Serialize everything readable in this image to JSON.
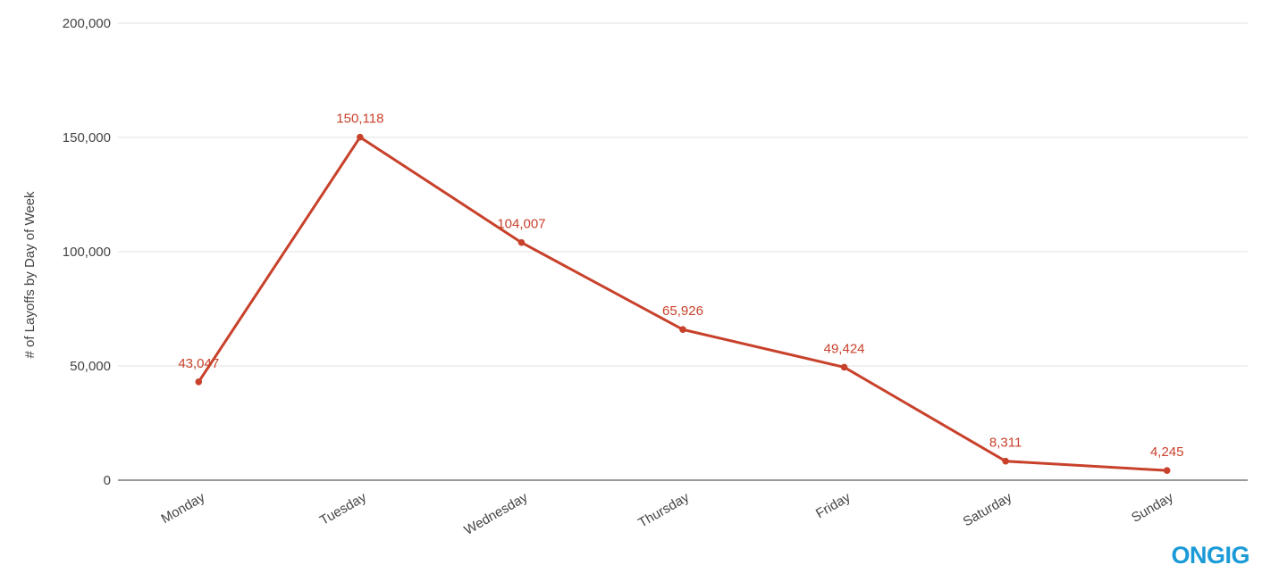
{
  "chart_data": {
    "type": "line",
    "y_axis_label": "# of Layoffs by Day of Week",
    "categories": [
      "Monday",
      "Tuesday",
      "Wednesday",
      "Thursday",
      "Friday",
      "Saturday",
      "Sunday"
    ],
    "series": [
      {
        "color": "#c8412b",
        "values": [
          43047,
          150118,
          104007,
          65926,
          49424,
          8311,
          4245
        ],
        "value_labels": [
          "43,047",
          "150,118",
          "104,007",
          "65,926",
          "49,424",
          "8,311",
          "4,245"
        ]
      }
    ],
    "ylim": [
      0,
      200000
    ],
    "yticks": [
      0,
      {
        "value": 50000,
        "label": "50,000"
      },
      {
        "value": 100000,
        "label": "100,000"
      },
      {
        "value": 150000,
        "label": "150,000"
      },
      {
        "value": 200000,
        "label": "200,000"
      }
    ],
    "grid": true
  },
  "logo": "ONGIG"
}
